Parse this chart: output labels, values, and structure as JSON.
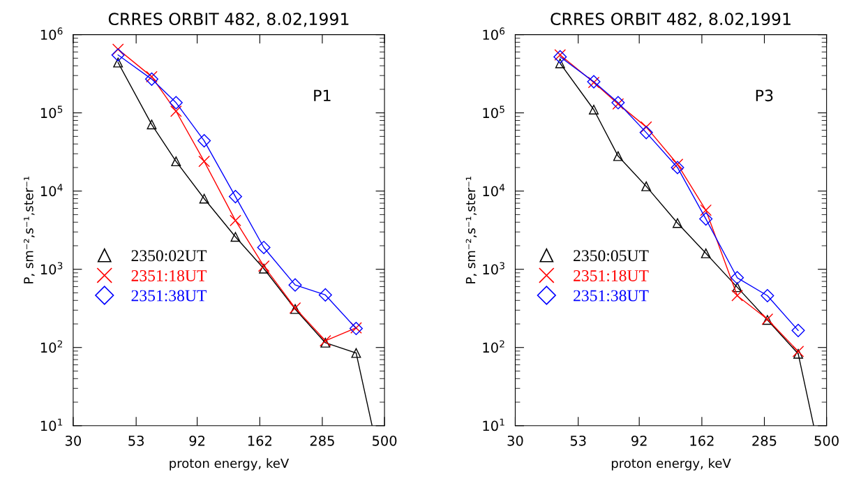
{
  "chart_data": [
    {
      "type": "line",
      "title": "CRRES ORBIT 482, 8.02,1991",
      "xlabel": "proton energy, keV",
      "ylabel": "P, sm⁻²,s⁻¹,ster⁻¹",
      "log": "xy",
      "annotations": [
        "P1"
      ],
      "legend": "left",
      "grid": false,
      "xlim": [
        30,
        500
      ],
      "xticks": [
        30,
        53,
        92,
        162,
        285,
        500
      ],
      "ylim": [
        10,
        1000000
      ],
      "yticks": [
        {
          "value": 10,
          "label": "10$^{1}$"
        },
        {
          "value": 100,
          "label": "10$^{2}$"
        },
        {
          "value": 1000,
          "label": "10$^{3}$"
        },
        {
          "value": 10000,
          "label": "10$^{4}$"
        },
        {
          "value": 100000,
          "label": "10$^{5}$"
        },
        {
          "value": 1000000,
          "label": "10$^{6}$"
        }
      ],
      "x": [
        45,
        61,
        76,
        98,
        130,
        168,
        223,
        293,
        387
      ],
      "series": [
        {
          "name": "2350:02UT",
          "color": "#000000",
          "marker": "triangle",
          "values": [
            440000,
            71000,
            24000,
            8000,
            2600,
            1020,
            310,
            115,
            85
          ]
        },
        {
          "color": "#000000",
          "marker": "none",
          "x": [
            387,
            447
          ],
          "values": [
            85,
            10
          ]
        },
        {
          "name": "2351:18UT",
          "color": "#ff0000",
          "marker": "cross",
          "values": [
            650000,
            290000,
            105000,
            24000,
            4200,
            1100,
            320,
            122,
            178
          ]
        },
        {
          "name": "2351:38UT",
          "color": "#0000ff",
          "marker": "diamond",
          "values": [
            550000,
            270000,
            135000,
            44000,
            8500,
            1900,
            630,
            470,
            175
          ]
        }
      ]
    },
    {
      "type": "line",
      "title": "CRRES ORBIT 482, 8.02,1991",
      "xlabel": "proton energy, keV",
      "ylabel": "P, sm⁻²,s⁻¹,ster⁻¹",
      "log": "xy",
      "annotations": [
        "P3"
      ],
      "legend": "left",
      "grid": false,
      "xlim": [
        30,
        500
      ],
      "xticks": [
        30,
        53,
        92,
        162,
        285,
        500
      ],
      "ylim": [
        10,
        1000000
      ],
      "yticks": [
        {
          "value": 10,
          "label": "10$^{1}$"
        },
        {
          "value": 100,
          "label": "10$^{2}$"
        },
        {
          "value": 1000,
          "label": "10$^{3}$"
        },
        {
          "value": 10000,
          "label": "10$^{4}$"
        },
        {
          "value": 100000,
          "label": "10$^{5}$"
        },
        {
          "value": 1000000,
          "label": "10$^{6}$"
        }
      ],
      "x": [
        45,
        61,
        76,
        98,
        130,
        168,
        223,
        293,
        387
      ],
      "series": [
        {
          "name": "2350:05UT",
          "color": "#000000",
          "marker": "triangle",
          "values": [
            430000,
            110000,
            28000,
            11500,
            3900,
            1600,
            590,
            225,
            83
          ]
        },
        {
          "color": "#000000",
          "marker": "none",
          "x": [
            387,
            445
          ],
          "values": [
            83,
            10
          ]
        },
        {
          "name": "2351:18UT",
          "color": "#ff0000",
          "marker": "cross",
          "values": [
            550000,
            245000,
            130000,
            66000,
            22000,
            5700,
            460,
            230,
            89
          ]
        },
        {
          "name": "2351:38UT",
          "color": "#0000ff",
          "marker": "diamond",
          "values": [
            520000,
            250000,
            135000,
            56000,
            20000,
            4400,
            780,
            460,
            165
          ]
        }
      ]
    }
  ]
}
